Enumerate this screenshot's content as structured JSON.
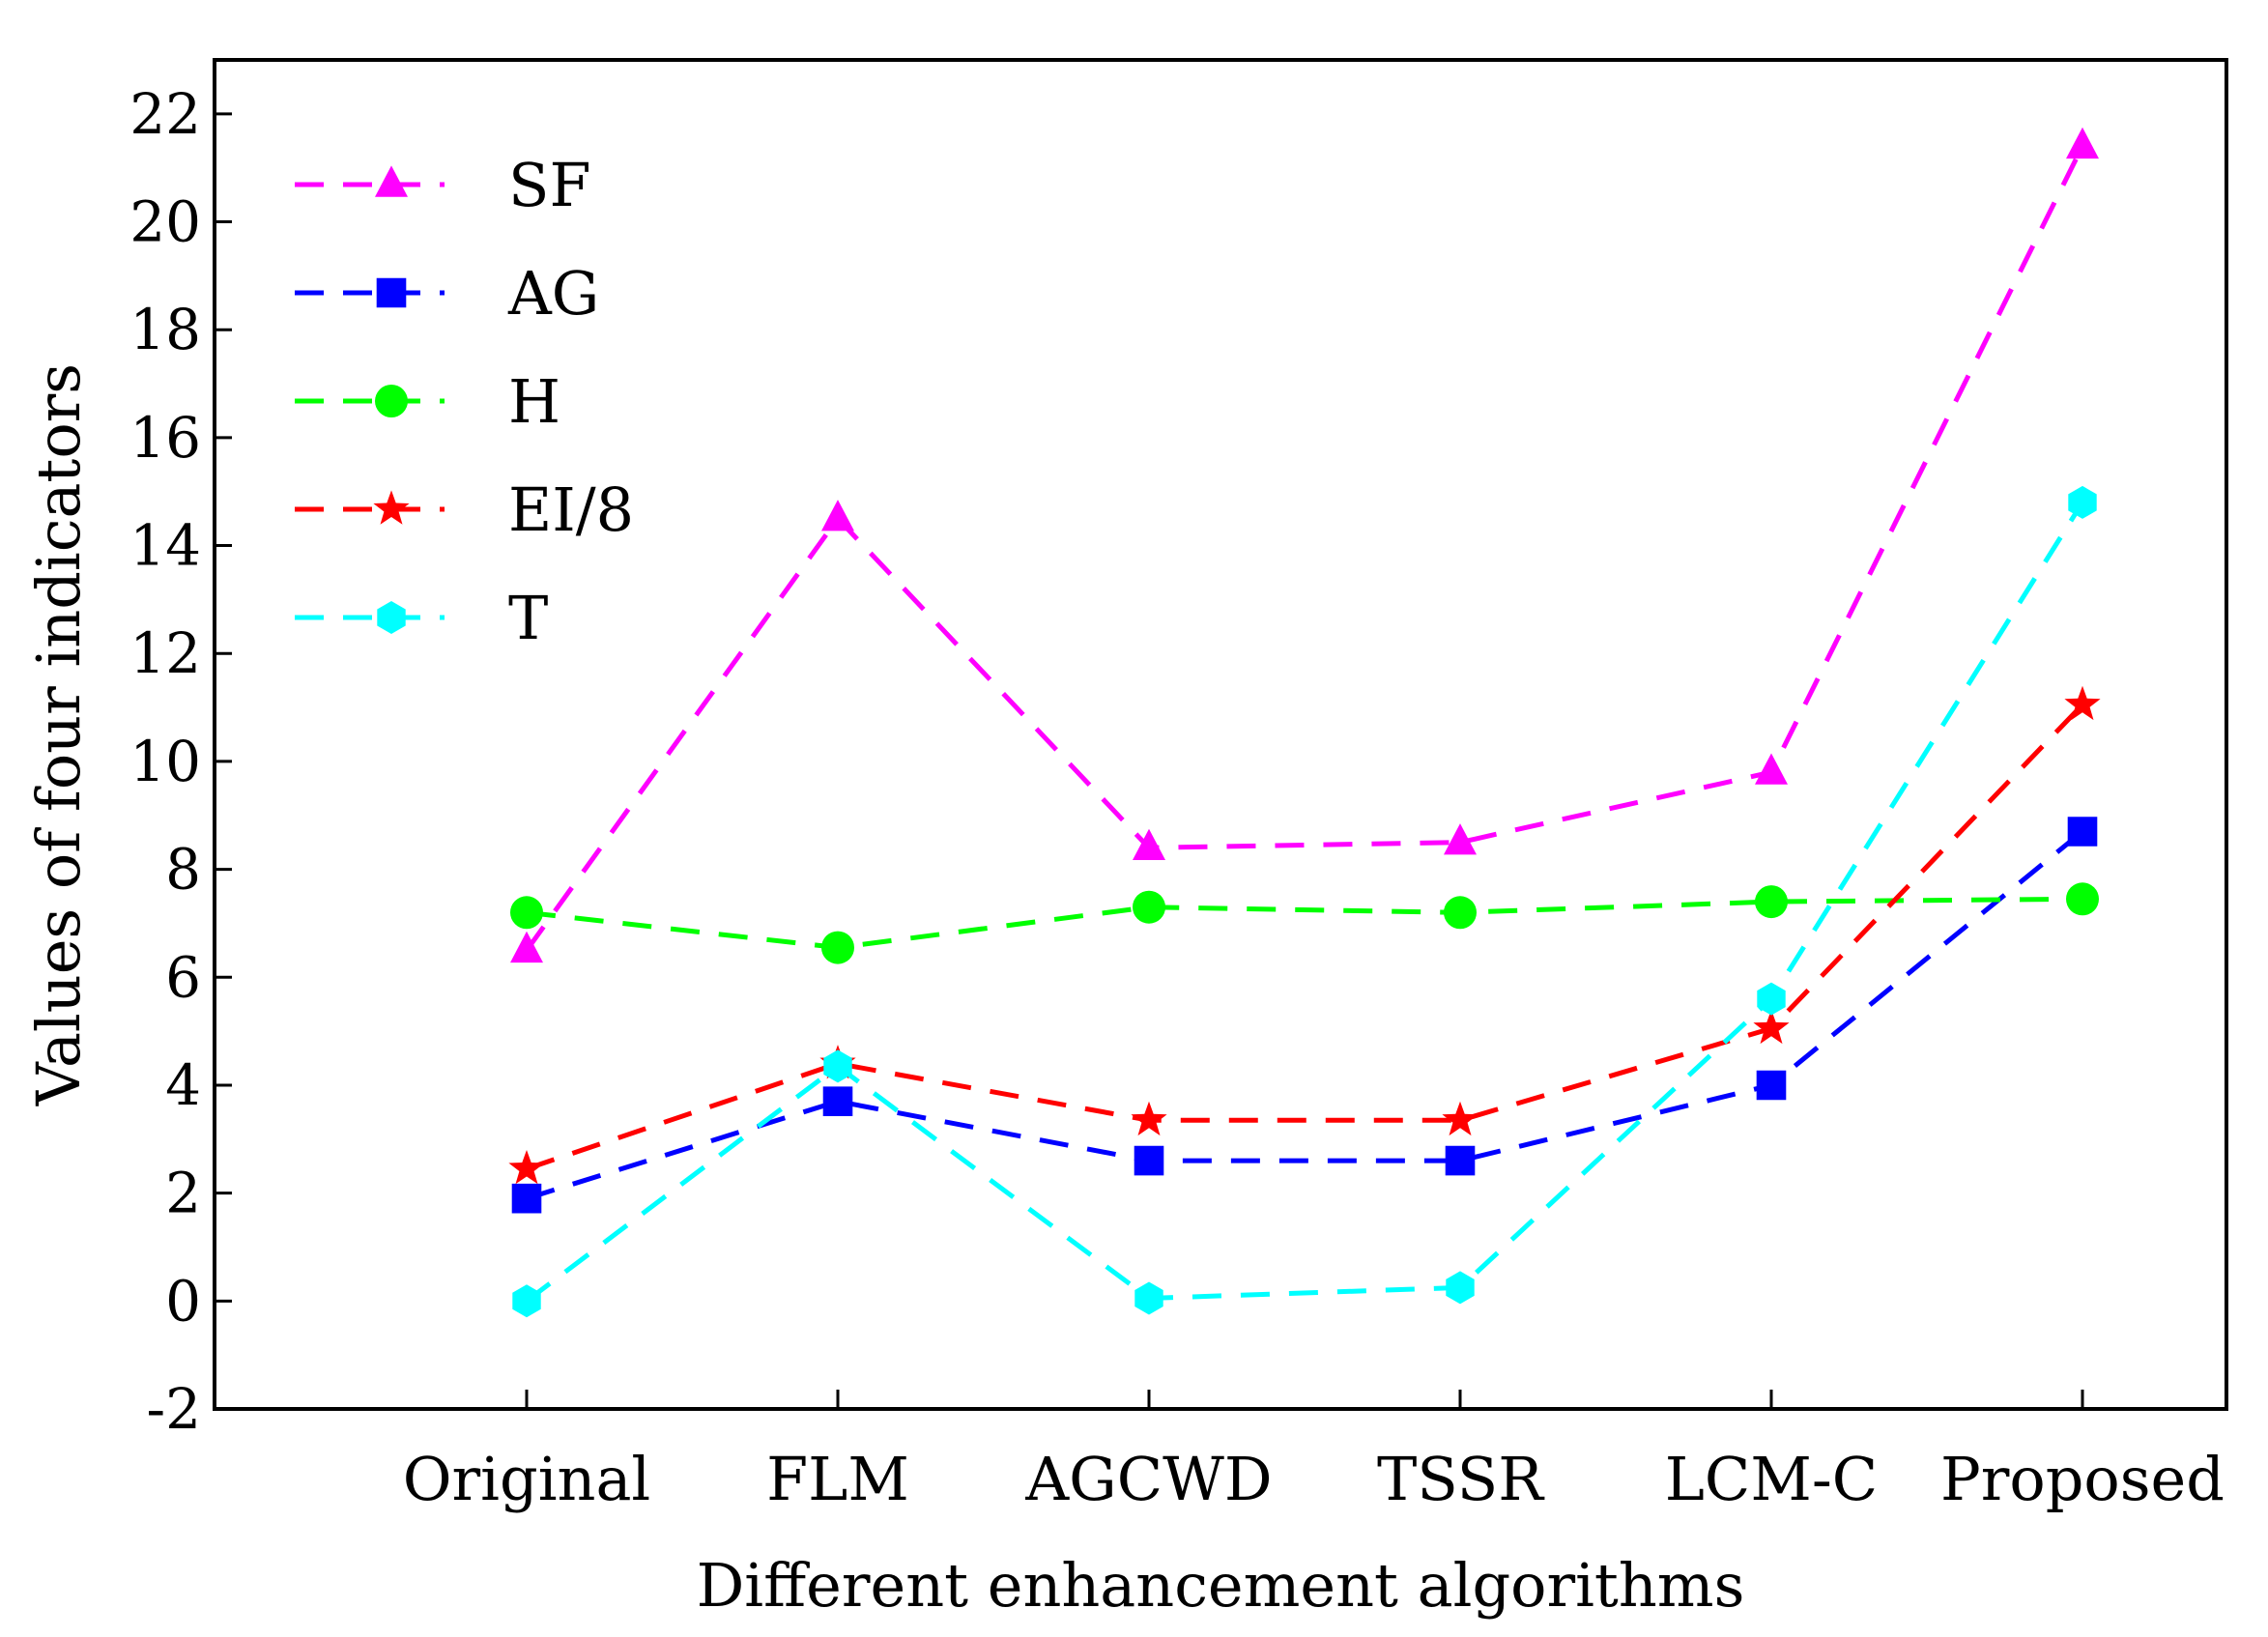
{
  "chart_data": {
    "type": "line",
    "title": "",
    "xlabel": "Different enhancement algorithms",
    "ylabel": "Values of four indicators",
    "categories": [
      "Original",
      "FLM",
      "AGCWD",
      "TSSR",
      "LCM-C",
      "Proposed"
    ],
    "ylim": [
      -2,
      23
    ],
    "yticks": [
      -2,
      0,
      2,
      4,
      6,
      8,
      10,
      12,
      14,
      16,
      18,
      20,
      22
    ],
    "grid": false,
    "legend_position": "top-left",
    "series": [
      {
        "name": "SF",
        "color": "#ff00ff",
        "marker": "triangle",
        "values": [
          6.5,
          14.5,
          8.4,
          8.5,
          9.8,
          21.4
        ]
      },
      {
        "name": "AG",
        "color": "#0000ff",
        "marker": "square",
        "values": [
          1.9,
          3.7,
          2.6,
          2.6,
          4.0,
          8.7
        ]
      },
      {
        "name": "H",
        "color": "#00ff00",
        "marker": "circle",
        "values": [
          7.2,
          6.55,
          7.3,
          7.2,
          7.4,
          7.45
        ]
      },
      {
        "name": "EI/8",
        "color": "#ff0000",
        "marker": "star",
        "values": [
          2.45,
          4.4,
          3.35,
          3.35,
          5.05,
          11.05
        ]
      },
      {
        "name": "T",
        "color": "#00ffff",
        "marker": "hexagon",
        "values": [
          0.0,
          4.35,
          0.05,
          0.25,
          5.6,
          14.8
        ]
      }
    ]
  }
}
